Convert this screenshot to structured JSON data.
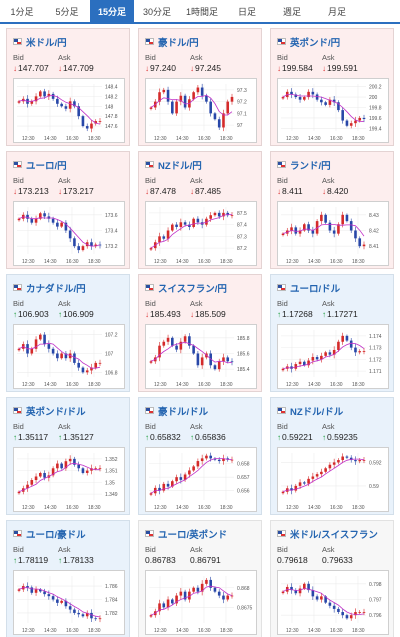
{
  "tabs": [
    {
      "label": "1分足",
      "active": false
    },
    {
      "label": "5分足",
      "active": false
    },
    {
      "label": "15分足",
      "active": true
    },
    {
      "label": "30分足",
      "active": false
    },
    {
      "label": "1時間足",
      "active": false
    },
    {
      "label": "日足",
      "active": false
    },
    {
      "label": "週足",
      "active": false
    },
    {
      "label": "月足",
      "active": false
    }
  ],
  "bid_label": "Bid",
  "ask_label": "Ask",
  "x_labels": [
    "12:30",
    "14:30",
    "16:30",
    "18:30"
  ],
  "colors": {
    "up_candle": "#d42a2a",
    "down_candle": "#2847a8",
    "moving_average": "#c030c8",
    "positive_arrow": "#1e9d3c",
    "negative_arrow": "#d33333"
  },
  "cards": [
    {
      "pair": "米ドル/円",
      "bg": "red",
      "bid": "147.707",
      "ask": "147.709",
      "dir": "down",
      "y_labels": [
        "148.4",
        "148.2",
        "148",
        "147.8",
        "147.6"
      ],
      "ylim": [
        147.5,
        148.45
      ],
      "trend": [
        148.1,
        148.15,
        148.05,
        148.1,
        148.2,
        148.3,
        148.2,
        148.25,
        148.15,
        148.05,
        148.0,
        147.95,
        148.1,
        148.0,
        147.8,
        147.6,
        147.55,
        147.65,
        147.7,
        147.7
      ]
    },
    {
      "pair": "豪ドル/円",
      "bg": "red",
      "bid": "97.240",
      "ask": "97.245",
      "dir": "down",
      "y_labels": [
        "97.3",
        "97.2",
        "97.1",
        "97"
      ],
      "ylim": [
        96.95,
        97.35
      ],
      "trend": [
        97.15,
        97.2,
        97.28,
        97.3,
        97.2,
        97.1,
        97.2,
        97.25,
        97.15,
        97.22,
        97.28,
        97.32,
        97.25,
        97.2,
        97.1,
        97.05,
        96.98,
        97.1,
        97.2,
        97.24
      ]
    },
    {
      "pair": "英ポンド/円",
      "bg": "red",
      "bid": "199.584",
      "ask": "199.591",
      "dir": "down",
      "y_labels": [
        "200.2",
        "200",
        "199.8",
        "199.6",
        "199.4"
      ],
      "ylim": [
        199.35,
        200.25
      ],
      "trend": [
        200.0,
        200.1,
        200.05,
        200.0,
        199.95,
        200.0,
        200.1,
        200.05,
        199.95,
        199.9,
        199.85,
        199.95,
        199.9,
        199.75,
        199.55,
        199.45,
        199.5,
        199.55,
        199.6,
        199.58
      ]
    },
    {
      "pair": "ユーロ/円",
      "bg": "red",
      "bid": "173.213",
      "ask": "173.217",
      "dir": "down",
      "y_labels": [
        "173.6",
        "173.4",
        "173.2"
      ],
      "ylim": [
        173.1,
        173.7
      ],
      "trend": [
        173.55,
        173.6,
        173.55,
        173.5,
        173.55,
        173.62,
        173.58,
        173.55,
        173.5,
        173.45,
        173.5,
        173.4,
        173.3,
        173.2,
        173.15,
        173.2,
        173.25,
        173.2,
        173.22,
        173.21
      ]
    },
    {
      "pair": "NZドル/円",
      "bg": "red",
      "bid": "87.478",
      "ask": "87.485",
      "dir": "down",
      "y_labels": [
        "87.5",
        "87.4",
        "87.3",
        "87.2"
      ],
      "ylim": [
        87.15,
        87.55
      ],
      "trend": [
        87.2,
        87.25,
        87.3,
        87.28,
        87.35,
        87.4,
        87.38,
        87.42,
        87.4,
        87.38,
        87.45,
        87.42,
        87.4,
        87.45,
        87.48,
        87.5,
        87.47,
        87.5,
        87.48,
        87.48
      ]
    },
    {
      "pair": "ランド/円",
      "bg": "red",
      "bid": "8.411",
      "ask": "8.420",
      "dir": "down",
      "y_labels": [
        "8.43",
        "8.42",
        "8.41"
      ],
      "ylim": [
        8.405,
        8.435
      ],
      "trend": [
        8.418,
        8.42,
        8.422,
        8.418,
        8.42,
        8.424,
        8.42,
        8.418,
        8.426,
        8.43,
        8.425,
        8.42,
        8.418,
        8.424,
        8.43,
        8.426,
        8.42,
        8.415,
        8.41,
        8.411
      ]
    },
    {
      "pair": "カナダドル/円",
      "bg": "blue",
      "bid": "106.903",
      "ask": "106.909",
      "dir": "up",
      "y_labels": [
        "107.2",
        "107",
        "106.8"
      ],
      "ylim": [
        106.75,
        107.25
      ],
      "trend": [
        107.05,
        107.1,
        107.0,
        107.05,
        107.15,
        107.2,
        107.1,
        107.05,
        107.0,
        106.95,
        107.0,
        106.95,
        107.0,
        106.9,
        106.85,
        106.8,
        106.82,
        106.85,
        106.9,
        106.9
      ]
    },
    {
      "pair": "スイスフラン/円",
      "bg": "red",
      "bid": "185.493",
      "ask": "185.509",
      "dir": "down",
      "y_labels": [
        "185.8",
        "185.6",
        "185.4"
      ],
      "ylim": [
        185.3,
        185.9
      ],
      "trend": [
        185.5,
        185.55,
        185.7,
        185.75,
        185.8,
        185.7,
        185.65,
        185.75,
        185.82,
        185.7,
        185.6,
        185.45,
        185.55,
        185.6,
        185.45,
        185.4,
        185.5,
        185.55,
        185.5,
        185.49
      ]
    },
    {
      "pair": "ユーロ/ドル",
      "bg": "blue",
      "bid": "1.17268",
      "ask": "1.17271",
      "dir": "up",
      "y_labels": [
        "1.174",
        "1.173",
        "1.172",
        "1.171"
      ],
      "ylim": [
        1.1705,
        1.1745
      ],
      "trend": [
        1.1712,
        1.1714,
        1.1712,
        1.1716,
        1.1718,
        1.1715,
        1.1719,
        1.1722,
        1.172,
        1.1723,
        1.1726,
        1.1724,
        1.1728,
        1.1735,
        1.174,
        1.1736,
        1.173,
        1.1726,
        1.1727,
        1.1727
      ]
    },
    {
      "pair": "英ポンド/ドル",
      "bg": "blue",
      "bid": "1.35117",
      "ask": "1.35127",
      "dir": "up",
      "y_labels": [
        "1.352",
        "1.351",
        "1.35",
        "1.349"
      ],
      "ylim": [
        1.3485,
        1.3525
      ],
      "trend": [
        1.3492,
        1.3495,
        1.3498,
        1.3502,
        1.3505,
        1.3508,
        1.3504,
        1.3506,
        1.3512,
        1.3516,
        1.3512,
        1.3518,
        1.352,
        1.3515,
        1.3512,
        1.3508,
        1.351,
        1.3512,
        1.3512,
        1.3512
      ]
    },
    {
      "pair": "豪ドル/ドル",
      "bg": "blue",
      "bid": "0.65832",
      "ask": "0.65836",
      "dir": "up",
      "y_labels": [
        "0.658",
        "0.657",
        "0.656"
      ],
      "ylim": [
        0.6553,
        0.6588
      ],
      "trend": [
        0.6558,
        0.6562,
        0.656,
        0.6565,
        0.6563,
        0.6567,
        0.657,
        0.6568,
        0.6572,
        0.6575,
        0.6578,
        0.6582,
        0.6584,
        0.6586,
        0.6584,
        0.6583,
        0.6582,
        0.6584,
        0.6583,
        0.6583
      ]
    },
    {
      "pair": "NZドル/ドル",
      "bg": "blue",
      "bid": "0.59221",
      "ask": "0.59235",
      "dir": "up",
      "y_labels": [
        "0.592",
        "0.59"
      ],
      "ylim": [
        0.5888,
        0.5928
      ],
      "trend": [
        0.5895,
        0.5898,
        0.5896,
        0.59,
        0.5903,
        0.5902,
        0.5906,
        0.5908,
        0.591,
        0.5912,
        0.5915,
        0.5918,
        0.592,
        0.5922,
        0.5925,
        0.5924,
        0.5922,
        0.5921,
        0.5922,
        0.5922
      ]
    },
    {
      "pair": "ユーロ/豪ドル",
      "bg": "blue",
      "bid": "1.78119",
      "ask": "1.78133",
      "dir": "up",
      "y_labels": [
        "1.786",
        "1.784",
        "1.782"
      ],
      "ylim": [
        1.7805,
        1.7875
      ],
      "trend": [
        1.7855,
        1.786,
        1.7858,
        1.785,
        1.7855,
        1.7852,
        1.7848,
        1.7845,
        1.784,
        1.7835,
        1.7838,
        1.783,
        1.7825,
        1.782,
        1.7818,
        1.7815,
        1.782,
        1.7812,
        1.7811,
        1.7812
      ]
    },
    {
      "pair": "ユーロ/英ポンド",
      "bg": "plain",
      "bid": "0.86783",
      "ask": "0.86791",
      "dir": "",
      "y_labels": [
        "0.868",
        "0.8675"
      ],
      "ylim": [
        0.8671,
        0.8683
      ],
      "trend": [
        0.8673,
        0.8674,
        0.8676,
        0.8675,
        0.8677,
        0.8676,
        0.8678,
        0.8679,
        0.8677,
        0.8679,
        0.868,
        0.8679,
        0.8681,
        0.8682,
        0.868,
        0.8679,
        0.8678,
        0.8677,
        0.8678,
        0.8678
      ]
    },
    {
      "pair": "米ドル/スイスフラン",
      "bg": "plain",
      "bid": "0.79618",
      "ask": "0.79633",
      "dir": "",
      "y_labels": [
        "0.798",
        "0.797",
        "0.796"
      ],
      "ylim": [
        0.7955,
        0.7985
      ],
      "trend": [
        0.7975,
        0.7978,
        0.7976,
        0.7974,
        0.7977,
        0.798,
        0.7976,
        0.7972,
        0.797,
        0.7972,
        0.7968,
        0.7966,
        0.7964,
        0.7962,
        0.796,
        0.7958,
        0.796,
        0.7962,
        0.7962,
        0.7962
      ]
    }
  ]
}
